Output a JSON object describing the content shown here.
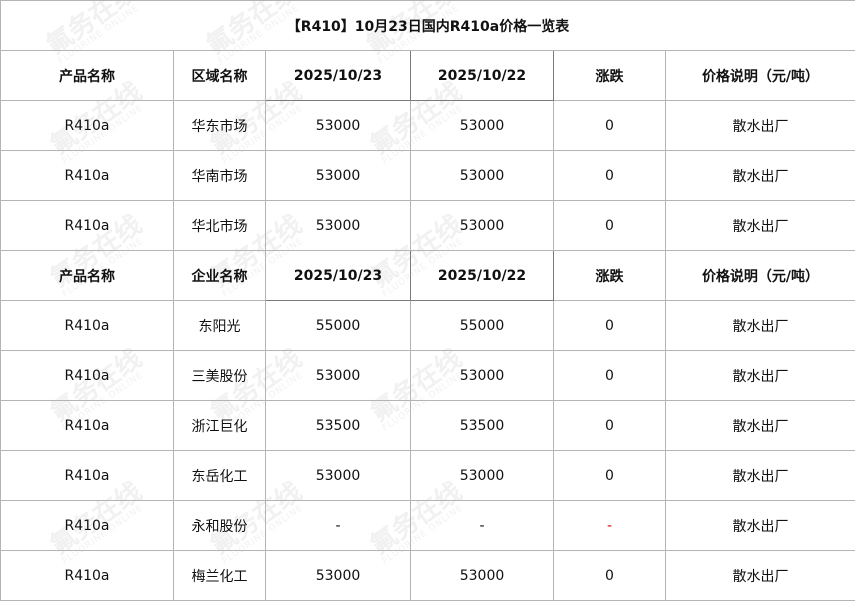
{
  "title": "【R410】10月23日国内R410a价格一览表",
  "watermark": {
    "cn": "氟务在线",
    "en": "FLUORINE ONLINE"
  },
  "colors": {
    "border": "#b4b4b4",
    "negative_dash": "#e00000"
  },
  "section1": {
    "headers": [
      "产品名称",
      "区域名称",
      "2025/10/23",
      "2025/10/22",
      "涨跌",
      "价格说明（元/吨）"
    ],
    "rows": [
      [
        "R410a",
        "华东市场",
        "53000",
        "53000",
        "0",
        "散水出厂"
      ],
      [
        "R410a",
        "华南市场",
        "53000",
        "53000",
        "0",
        "散水出厂"
      ],
      [
        "R410a",
        "华北市场",
        "53000",
        "53000",
        "0",
        "散水出厂"
      ]
    ]
  },
  "section2": {
    "headers": [
      "产品名称",
      "企业名称",
      "2025/10/23",
      "2025/10/22",
      "涨跌",
      "价格说明（元/吨）"
    ],
    "rows": [
      [
        "R410a",
        "东阳光",
        "55000",
        "55000",
        "0",
        "散水出厂"
      ],
      [
        "R410a",
        "三美股份",
        "53000",
        "53000",
        "0",
        "散水出厂"
      ],
      [
        "R410a",
        "浙江巨化",
        "53500",
        "53500",
        "0",
        "散水出厂"
      ],
      [
        "R410a",
        "东岳化工",
        "53000",
        "53000",
        "0",
        "散水出厂"
      ],
      [
        "R410a",
        "永和股份",
        "-",
        "-",
        "-",
        "散水出厂"
      ],
      [
        "R410a",
        "梅兰化工",
        "53000",
        "53000",
        "0",
        "散水出厂"
      ]
    ]
  }
}
